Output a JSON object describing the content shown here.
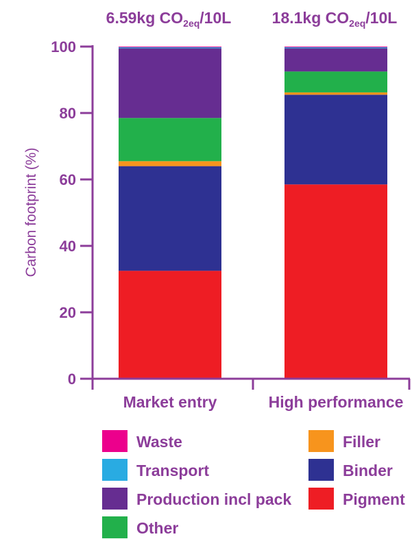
{
  "chart_data": {
    "type": "bar",
    "stacked": true,
    "ylabel": "Carbon footprint (%)",
    "ylim": [
      0,
      100
    ],
    "yticks": [
      0,
      20,
      40,
      60,
      80,
      100
    ],
    "categories": [
      "Market entry",
      "High performance"
    ],
    "bar_headers": [
      {
        "value": "6.59kg CO",
        "sub": "2eq",
        "unit": "/10L"
      },
      {
        "value": "18.1kg CO",
        "sub": "2eq",
        "unit": "/10L"
      }
    ],
    "series": [
      {
        "name": "Pigment",
        "color": "#ee1d24",
        "values": [
          32.5,
          58.5
        ]
      },
      {
        "name": "Binder",
        "color": "#2e3192",
        "values": [
          31.5,
          27.0
        ]
      },
      {
        "name": "Filler",
        "color": "#f7941d",
        "values": [
          1.5,
          0.7
        ]
      },
      {
        "name": "Other",
        "color": "#22b04b",
        "values": [
          13.0,
          6.3
        ]
      },
      {
        "name": "Production incl pack",
        "color": "#662d91",
        "values": [
          21.0,
          7.0
        ]
      },
      {
        "name": "Transport",
        "color": "#29abe2",
        "values": [
          0.3,
          0.3
        ]
      },
      {
        "name": "Waste",
        "color": "#ec008c",
        "values": [
          0.2,
          0.2
        ]
      }
    ],
    "legend": {
      "placement": "bottom",
      "left_column": [
        "Waste",
        "Transport",
        "Production incl pack",
        "Other"
      ],
      "right_column": [
        "Filler",
        "Binder",
        "Pigment"
      ]
    },
    "axis_color": "#8c3d9a"
  }
}
